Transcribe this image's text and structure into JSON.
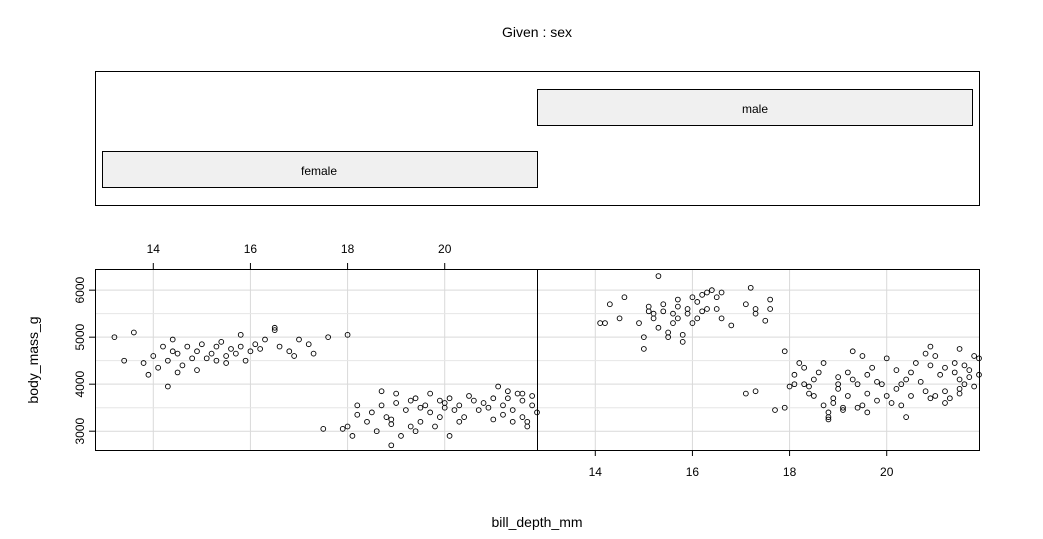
{
  "chart_data": {
    "type": "scatter",
    "title": "Given : sex",
    "xlabel": "bill_depth_mm",
    "ylabel": "body_mass_g",
    "xlim": [
      12.8,
      21.9
    ],
    "ylim": [
      2600,
      6450
    ],
    "xticks": [
      14,
      16,
      18,
      20
    ],
    "yticks": [
      3000,
      4000,
      5000,
      6000
    ],
    "grid": true,
    "panels": [
      {
        "name": "female",
        "points": [
          [
            13.2,
            5000
          ],
          [
            13.4,
            4500
          ],
          [
            13.6,
            5100
          ],
          [
            13.8,
            4450
          ],
          [
            13.9,
            4200
          ],
          [
            14.0,
            4600
          ],
          [
            14.1,
            4350
          ],
          [
            14.2,
            4800
          ],
          [
            14.3,
            4500
          ],
          [
            14.3,
            3950
          ],
          [
            14.4,
            4700
          ],
          [
            14.4,
            4950
          ],
          [
            14.5,
            4250
          ],
          [
            14.5,
            4650
          ],
          [
            14.6,
            4400
          ],
          [
            14.7,
            4800
          ],
          [
            14.8,
            4550
          ],
          [
            14.9,
            4700
          ],
          [
            14.9,
            4300
          ],
          [
            15.0,
            4850
          ],
          [
            15.1,
            4550
          ],
          [
            15.2,
            4650
          ],
          [
            15.3,
            4800
          ],
          [
            15.3,
            4500
          ],
          [
            15.4,
            4900
          ],
          [
            15.5,
            4600
          ],
          [
            15.5,
            4450
          ],
          [
            15.6,
            4750
          ],
          [
            15.7,
            4650
          ],
          [
            15.8,
            5050
          ],
          [
            15.8,
            4800
          ],
          [
            15.9,
            4500
          ],
          [
            16.0,
            4700
          ],
          [
            16.1,
            4850
          ],
          [
            16.2,
            4750
          ],
          [
            16.3,
            4950
          ],
          [
            16.5,
            5200
          ],
          [
            16.5,
            5150
          ],
          [
            16.6,
            4800
          ],
          [
            16.8,
            4700
          ],
          [
            16.9,
            4600
          ],
          [
            17.0,
            4950
          ],
          [
            17.2,
            4850
          ],
          [
            17.3,
            4650
          ],
          [
            17.6,
            5000
          ],
          [
            18.0,
            5050
          ],
          [
            17.5,
            3050
          ],
          [
            17.9,
            3050
          ],
          [
            18.0,
            3100
          ],
          [
            18.1,
            2900
          ],
          [
            18.2,
            3550
          ],
          [
            18.2,
            3350
          ],
          [
            18.4,
            3200
          ],
          [
            18.5,
            3400
          ],
          [
            18.6,
            3000
          ],
          [
            18.7,
            3550
          ],
          [
            18.7,
            3850
          ],
          [
            18.8,
            3300
          ],
          [
            18.9,
            3250
          ],
          [
            18.9,
            2700
          ],
          [
            18.9,
            3150
          ],
          [
            19.0,
            3600
          ],
          [
            19.0,
            3800
          ],
          [
            19.1,
            2900
          ],
          [
            19.2,
            3450
          ],
          [
            19.3,
            3100
          ],
          [
            19.3,
            3650
          ],
          [
            19.4,
            3000
          ],
          [
            19.4,
            3700
          ],
          [
            19.5,
            3500
          ],
          [
            19.5,
            3200
          ],
          [
            19.6,
            3550
          ],
          [
            19.7,
            3400
          ],
          [
            19.7,
            3800
          ],
          [
            19.8,
            3100
          ],
          [
            19.9,
            3650
          ],
          [
            19.9,
            3300
          ],
          [
            20.0,
            3600
          ],
          [
            20.0,
            3500
          ],
          [
            20.1,
            3700
          ],
          [
            20.1,
            2900
          ],
          [
            20.2,
            3450
          ],
          [
            20.3,
            3550
          ],
          [
            20.3,
            3200
          ],
          [
            20.4,
            3300
          ],
          [
            20.5,
            3750
          ],
          [
            20.6,
            3650
          ],
          [
            20.7,
            3450
          ],
          [
            20.8,
            3600
          ],
          [
            20.9,
            3500
          ],
          [
            21.0,
            3700
          ],
          [
            21.0,
            3250
          ],
          [
            21.1,
            3950
          ],
          [
            21.2,
            3550
          ],
          [
            21.2,
            3350
          ],
          [
            21.3,
            3700
          ],
          [
            21.4,
            3450
          ],
          [
            21.5,
            3800
          ],
          [
            21.6,
            3300
          ],
          [
            21.6,
            3650
          ],
          [
            21.7,
            3200
          ],
          [
            21.8,
            3550
          ],
          [
            21.9,
            3400
          ],
          [
            21.6,
            3800
          ],
          [
            21.8,
            3750
          ],
          [
            21.3,
            3850
          ],
          [
            21.4,
            3200
          ],
          [
            21.7,
            3100
          ]
        ]
      },
      {
        "name": "male",
        "points": [
          [
            14.1,
            5300
          ],
          [
            14.2,
            5300
          ],
          [
            14.3,
            5700
          ],
          [
            14.5,
            5400
          ],
          [
            14.6,
            5850
          ],
          [
            14.9,
            5300
          ],
          [
            15.0,
            5000
          ],
          [
            15.0,
            4750
          ],
          [
            15.1,
            5550
          ],
          [
            15.1,
            5650
          ],
          [
            15.2,
            5500
          ],
          [
            15.2,
            5400
          ],
          [
            15.3,
            6300
          ],
          [
            15.3,
            5200
          ],
          [
            15.4,
            5550
          ],
          [
            15.4,
            5700
          ],
          [
            15.5,
            5100
          ],
          [
            15.5,
            5000
          ],
          [
            15.6,
            5300
          ],
          [
            15.6,
            5500
          ],
          [
            15.7,
            5800
          ],
          [
            15.7,
            5650
          ],
          [
            15.7,
            5400
          ],
          [
            15.8,
            4900
          ],
          [
            15.8,
            5050
          ],
          [
            15.9,
            5500
          ],
          [
            15.9,
            5600
          ],
          [
            16.0,
            5850
          ],
          [
            16.0,
            5300
          ],
          [
            16.1,
            5750
          ],
          [
            16.1,
            5400
          ],
          [
            16.2,
            5900
          ],
          [
            16.2,
            5550
          ],
          [
            16.3,
            5600
          ],
          [
            16.3,
            5950
          ],
          [
            16.4,
            6000
          ],
          [
            16.5,
            5600
          ],
          [
            16.5,
            5850
          ],
          [
            16.6,
            5400
          ],
          [
            16.6,
            5950
          ],
          [
            16.8,
            5250
          ],
          [
            17.1,
            5700
          ],
          [
            17.2,
            6050
          ],
          [
            17.3,
            5600
          ],
          [
            17.3,
            5500
          ],
          [
            17.5,
            5350
          ],
          [
            17.6,
            5600
          ],
          [
            17.6,
            5800
          ],
          [
            17.9,
            4700
          ],
          [
            17.1,
            3800
          ],
          [
            17.3,
            3850
          ],
          [
            17.7,
            3450
          ],
          [
            17.9,
            3500
          ],
          [
            18.0,
            3950
          ],
          [
            18.1,
            4000
          ],
          [
            18.1,
            4200
          ],
          [
            18.2,
            4450
          ],
          [
            18.3,
            4000
          ],
          [
            18.3,
            4350
          ],
          [
            18.4,
            3800
          ],
          [
            18.4,
            3950
          ],
          [
            18.5,
            3750
          ],
          [
            18.5,
            4100
          ],
          [
            18.6,
            4250
          ],
          [
            18.7,
            3550
          ],
          [
            18.7,
            4450
          ],
          [
            18.8,
            3400
          ],
          [
            18.8,
            3300
          ],
          [
            18.9,
            3600
          ],
          [
            18.9,
            3700
          ],
          [
            19.0,
            4150
          ],
          [
            19.0,
            3900
          ],
          [
            19.0,
            4000
          ],
          [
            19.1,
            3450
          ],
          [
            19.2,
            4250
          ],
          [
            19.2,
            3750
          ],
          [
            19.3,
            4700
          ],
          [
            19.3,
            4100
          ],
          [
            19.4,
            4000
          ],
          [
            19.4,
            3500
          ],
          [
            19.5,
            4600
          ],
          [
            19.5,
            3550
          ],
          [
            19.6,
            4200
          ],
          [
            19.6,
            3800
          ],
          [
            19.7,
            4350
          ],
          [
            19.8,
            4050
          ],
          [
            19.8,
            3650
          ],
          [
            19.9,
            4000
          ],
          [
            20.0,
            3750
          ],
          [
            20.0,
            4550
          ],
          [
            20.1,
            3600
          ],
          [
            20.2,
            4300
          ],
          [
            20.2,
            3900
          ],
          [
            20.3,
            3550
          ],
          [
            20.3,
            4000
          ],
          [
            20.4,
            4100
          ],
          [
            20.4,
            3300
          ],
          [
            20.5,
            4250
          ],
          [
            20.5,
            3750
          ],
          [
            20.6,
            4450
          ],
          [
            20.7,
            4050
          ],
          [
            20.8,
            4650
          ],
          [
            20.8,
            3850
          ],
          [
            20.9,
            4400
          ],
          [
            21.0,
            3750
          ],
          [
            21.0,
            4600
          ],
          [
            21.1,
            4200
          ],
          [
            21.2,
            4350
          ],
          [
            21.3,
            3700
          ],
          [
            21.4,
            4250
          ],
          [
            21.5,
            3800
          ],
          [
            21.5,
            4750
          ],
          [
            21.6,
            4400
          ],
          [
            21.7,
            4150
          ],
          [
            21.8,
            3950
          ],
          [
            21.9,
            4200
          ],
          [
            18.8,
            3250
          ],
          [
            19.1,
            3500
          ],
          [
            19.6,
            3400
          ],
          [
            20.9,
            3700
          ],
          [
            21.2,
            3600
          ],
          [
            21.4,
            4450
          ],
          [
            21.5,
            4100
          ],
          [
            21.7,
            4300
          ],
          [
            21.8,
            4600
          ],
          [
            21.9,
            4550
          ],
          [
            21.5,
            3900
          ],
          [
            21.6,
            4000
          ],
          [
            21.2,
            3850
          ],
          [
            20.9,
            4800
          ]
        ]
      }
    ]
  }
}
